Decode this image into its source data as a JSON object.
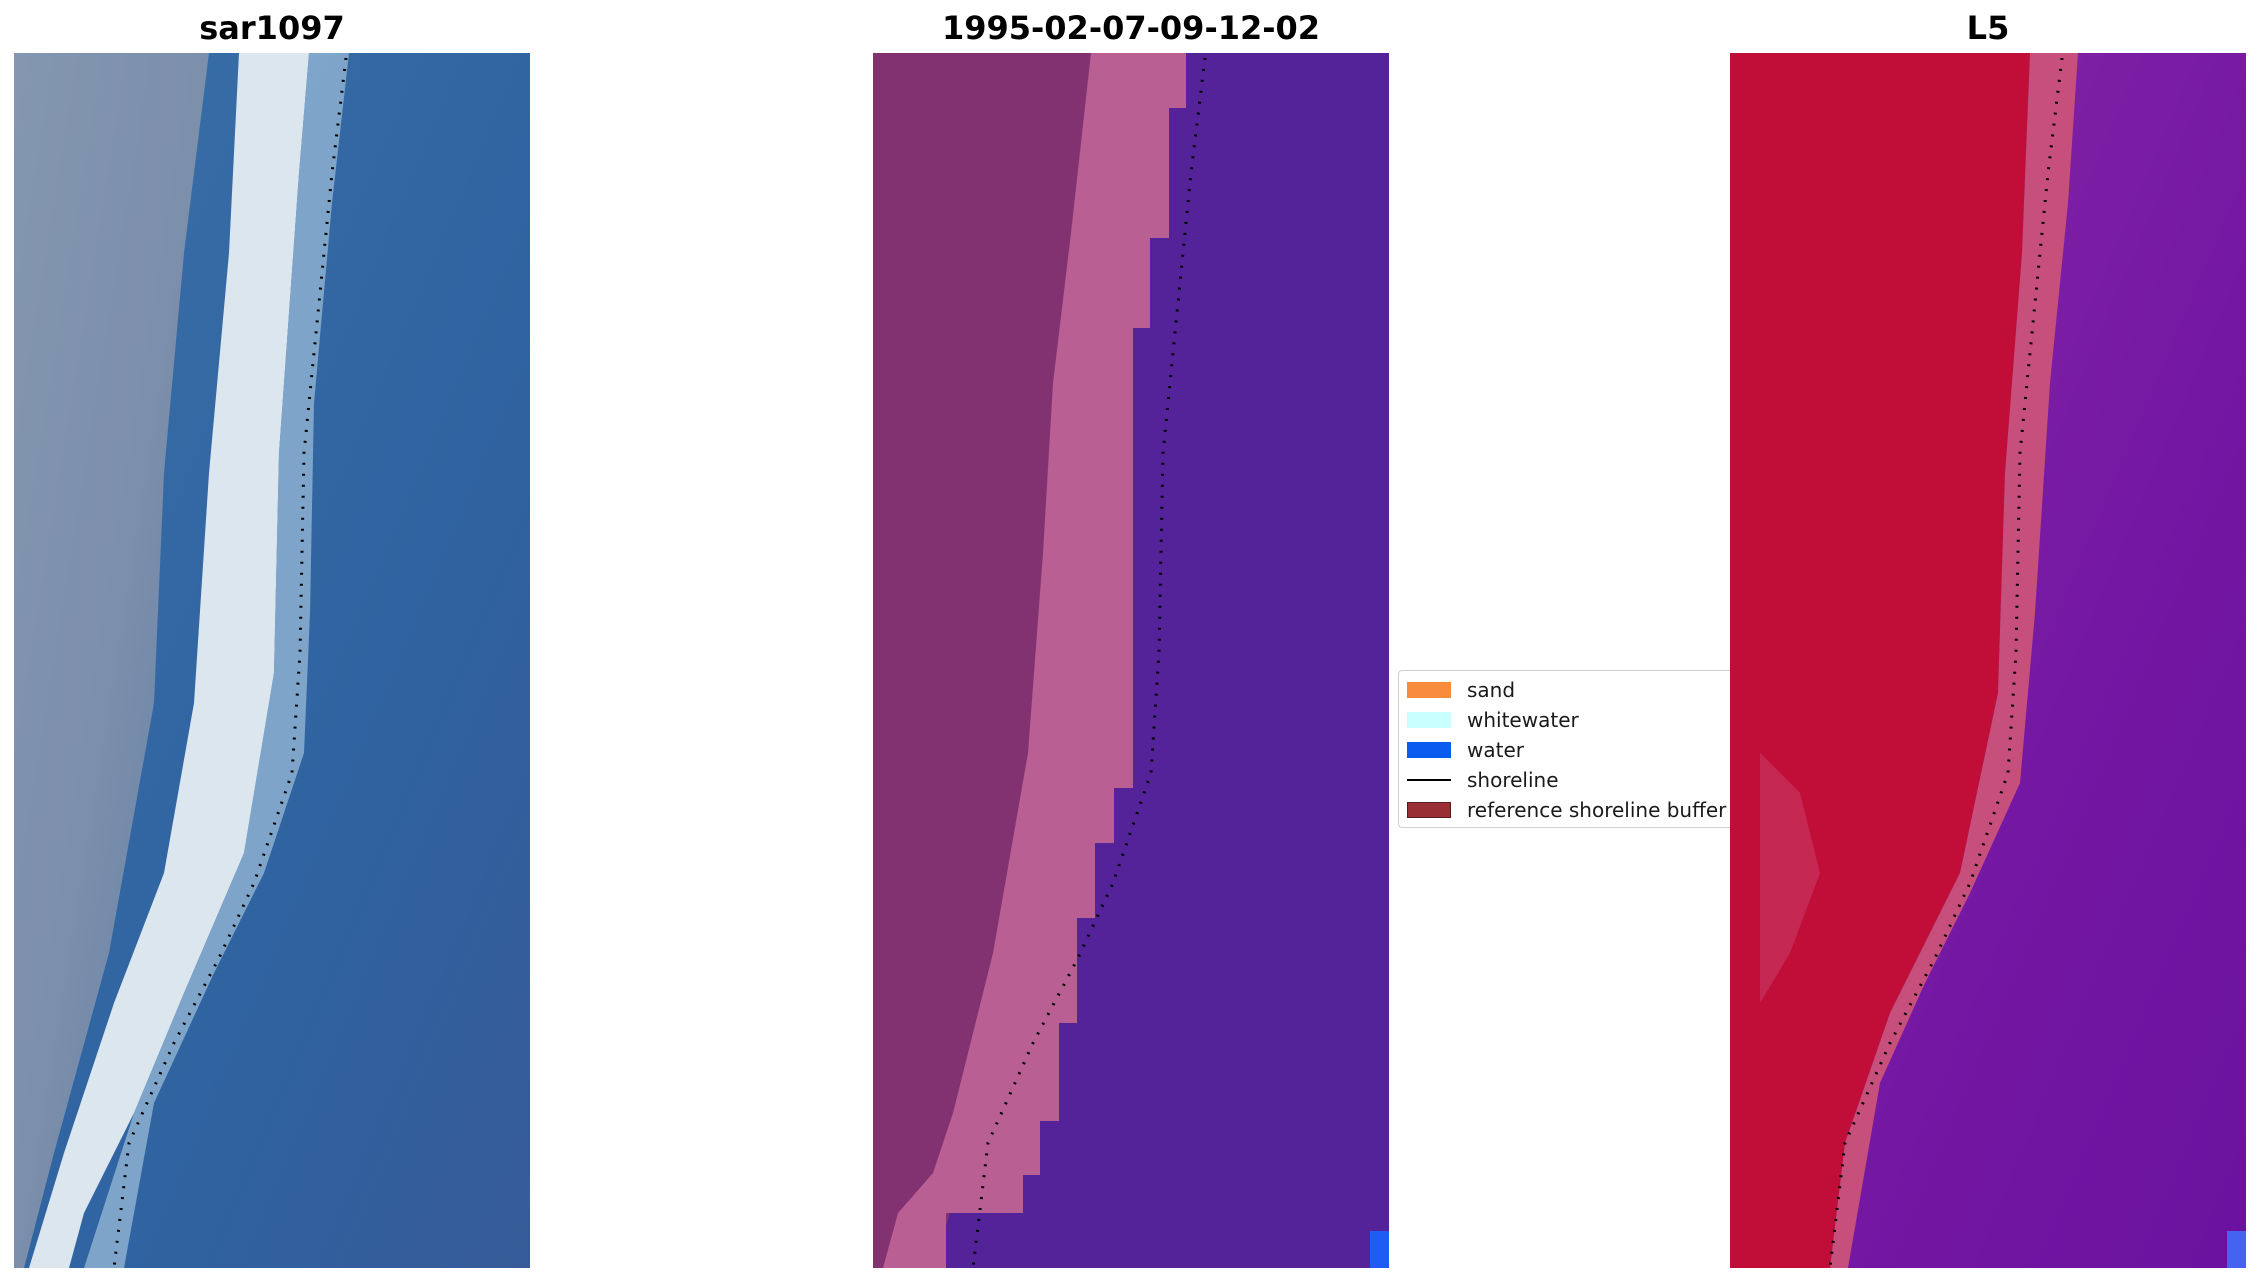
{
  "panels": [
    {
      "title": "sar1097",
      "icon": "rgb-image-icon"
    },
    {
      "title": "1995-02-07-09-12-02",
      "icon": "classified-image-icon"
    },
    {
      "title": "L5",
      "icon": "false-color-image-icon"
    }
  ],
  "legend": {
    "items": [
      {
        "label": "sand",
        "color": "#f98c3c",
        "kind": "patch"
      },
      {
        "label": "whitewater",
        "color": "#c8ffff",
        "kind": "patch"
      },
      {
        "label": "water",
        "color": "#0a5cf0",
        "kind": "patch"
      },
      {
        "label": "shoreline",
        "color": "#000000",
        "kind": "line"
      },
      {
        "label": "reference shoreline buffer",
        "color": "#992e34",
        "kind": "patch"
      }
    ]
  },
  "colors": {
    "rgb_sand": "#7e92ad",
    "rgb_whitewater": "#e8eef2",
    "rgb_water": "#2f65a3",
    "class_land": "#823271",
    "class_beach": "#b95f94",
    "class_water": "#542399",
    "class_corner": "#1f5cf5",
    "ndwi_land": "#c10e38",
    "ndwi_beach": "#c64f7c",
    "ndwi_water": "#7b1ba3",
    "ndwi_corner": "#4562f0"
  }
}
